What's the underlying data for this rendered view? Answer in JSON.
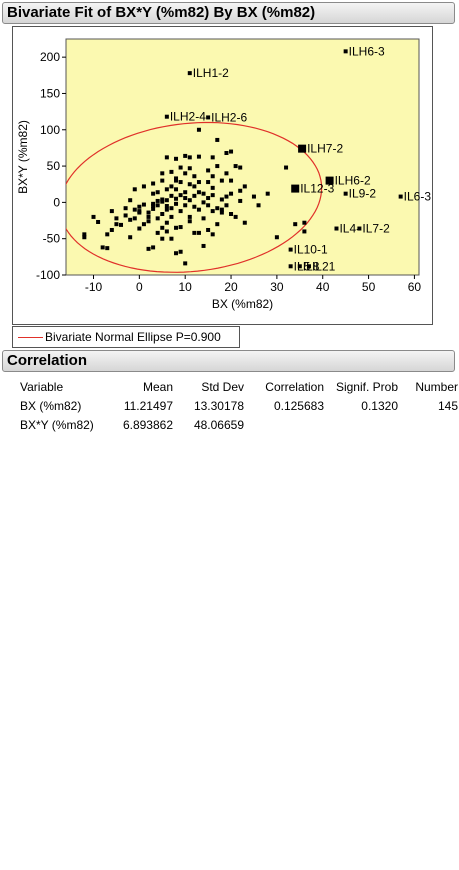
{
  "report": {
    "bivariate_title": "Bivariate Fit of BX*Y (%m82) By BX (%m82)",
    "legend_label": "Bivariate Normal Ellipse P=0.900",
    "correlation_title": "Correlation"
  },
  "colors": {
    "plot_bg": "#fbf9b0",
    "points": "#000000",
    "ellipse": "#e0312a"
  },
  "chart_data": {
    "type": "scatter",
    "xlabel": "BX (%m82)",
    "ylabel": "BX*Y (%m82)",
    "xlim": [
      -16,
      61
    ],
    "ylim": [
      -100,
      225
    ],
    "xticks": [
      -10,
      0,
      10,
      20,
      30,
      40,
      50,
      60
    ],
    "yticks": [
      -100,
      -50,
      0,
      50,
      100,
      150,
      200
    ],
    "ellipse": {
      "probability": 0.9,
      "mean_x": 11.21497,
      "mean_y": 6.893862,
      "sd_x": 13.30178,
      "sd_y": 48.06659,
      "correlation": 0.125683
    },
    "labeled_points": [
      {
        "label": "ILH6-3",
        "x": 45,
        "y": 208,
        "marker": "small"
      },
      {
        "label": "ILH1-2",
        "x": 11,
        "y": 178,
        "marker": "small"
      },
      {
        "label": "ILH2-4",
        "x": 6,
        "y": 118,
        "marker": "small"
      },
      {
        "label": "ILH2-6",
        "x": 15,
        "y": 117,
        "marker": "small"
      },
      {
        "label": "ILH7-2",
        "x": 35.5,
        "y": 74,
        "marker": "large"
      },
      {
        "label": "ILH6-2",
        "x": 41.5,
        "y": 30,
        "marker": "large"
      },
      {
        "label": "IL12-3",
        "x": 34,
        "y": 19,
        "marker": "large"
      },
      {
        "label": "IL6-3",
        "x": 57,
        "y": 8,
        "marker": "small"
      },
      {
        "label": "IL9-2",
        "x": 45,
        "y": 12,
        "marker": "small"
      },
      {
        "label": "IL4-",
        "x": 43,
        "y": -36,
        "marker": "small"
      },
      {
        "label": "IL7-2",
        "x": 48,
        "y": -36,
        "marker": "small"
      },
      {
        "label": "IL10-1",
        "x": 33,
        "y": -65,
        "marker": "small"
      },
      {
        "label": "IL5",
        "x": 33,
        "y": -88,
        "marker": "small"
      },
      {
        "label": "IL8",
        "x": 35,
        "y": -88,
        "marker": "small"
      },
      {
        "label": "IL21",
        "x": 37,
        "y": -88,
        "marker": "small"
      }
    ],
    "points": [
      [
        -12,
        -48
      ],
      [
        -10,
        -20
      ],
      [
        -9,
        -27
      ],
      [
        -8,
        -62
      ],
      [
        -7,
        -63
      ],
      [
        -7,
        -44
      ],
      [
        -6,
        -12
      ],
      [
        -6,
        -38
      ],
      [
        -5,
        -30
      ],
      [
        -5,
        -22
      ],
      [
        -4,
        -31
      ],
      [
        -3,
        -18
      ],
      [
        -3,
        -8
      ],
      [
        -2,
        3
      ],
      [
        -2,
        -24
      ],
      [
        -2,
        -48
      ],
      [
        -1,
        -22
      ],
      [
        -1,
        -10
      ],
      [
        0,
        -6
      ],
      [
        0,
        -12
      ],
      [
        0,
        -36
      ],
      [
        1,
        -3
      ],
      [
        1,
        -30
      ],
      [
        1,
        22
      ],
      [
        2,
        -14
      ],
      [
        2,
        -26
      ],
      [
        2,
        -64
      ],
      [
        3,
        -5
      ],
      [
        3,
        -9
      ],
      [
        3,
        -2
      ],
      [
        3,
        12
      ],
      [
        3,
        26
      ],
      [
        4,
        -4
      ],
      [
        4,
        2
      ],
      [
        4,
        14
      ],
      [
        4,
        -22
      ],
      [
        5,
        1
      ],
      [
        5,
        4
      ],
      [
        5,
        -16
      ],
      [
        5,
        30
      ],
      [
        5,
        40
      ],
      [
        5,
        -35
      ],
      [
        5,
        -50
      ],
      [
        6,
        3
      ],
      [
        6,
        -10
      ],
      [
        6,
        18
      ],
      [
        6,
        62
      ],
      [
        6,
        -28
      ],
      [
        6,
        -5
      ],
      [
        7,
        -8
      ],
      [
        7,
        9
      ],
      [
        7,
        22
      ],
      [
        7,
        42
      ],
      [
        7,
        -20
      ],
      [
        7,
        -50
      ],
      [
        8,
        -70
      ],
      [
        8,
        -35
      ],
      [
        8,
        5
      ],
      [
        8,
        18
      ],
      [
        8,
        33
      ],
      [
        8,
        60
      ],
      [
        8,
        -2
      ],
      [
        9,
        -12
      ],
      [
        9,
        10
      ],
      [
        9,
        28
      ],
      [
        9,
        48
      ],
      [
        9,
        -34
      ],
      [
        10,
        -4
      ],
      [
        10,
        6
      ],
      [
        10,
        14
      ],
      [
        10,
        40
      ],
      [
        10,
        64
      ],
      [
        11,
        -20
      ],
      [
        11,
        3
      ],
      [
        11,
        25
      ],
      [
        11,
        47
      ],
      [
        11,
        62
      ],
      [
        12,
        -6
      ],
      [
        12,
        9
      ],
      [
        12,
        22
      ],
      [
        12,
        36
      ],
      [
        13,
        -10
      ],
      [
        13,
        14
      ],
      [
        13,
        63
      ],
      [
        13,
        -42
      ],
      [
        13,
        100
      ],
      [
        14,
        -22
      ],
      [
        14,
        0
      ],
      [
        14,
        12
      ],
      [
        14,
        -60
      ],
      [
        15,
        6
      ],
      [
        15,
        28
      ],
      [
        15,
        44
      ],
      [
        15,
        -4
      ],
      [
        16,
        -12
      ],
      [
        16,
        10
      ],
      [
        16,
        20
      ],
      [
        16,
        62
      ],
      [
        17,
        -8
      ],
      [
        17,
        -30
      ],
      [
        17,
        50
      ],
      [
        17,
        86
      ],
      [
        18,
        -14
      ],
      [
        18,
        4
      ],
      [
        18,
        30
      ],
      [
        19,
        -4
      ],
      [
        19,
        8
      ],
      [
        19,
        40
      ],
      [
        19,
        68
      ],
      [
        20,
        -16
      ],
      [
        20,
        12
      ],
      [
        20,
        30
      ],
      [
        20,
        70
      ],
      [
        21,
        -20
      ],
      [
        22,
        2
      ],
      [
        22,
        16
      ],
      [
        22,
        48
      ],
      [
        23,
        -28
      ],
      [
        23,
        22
      ],
      [
        25,
        8
      ],
      [
        26,
        -4
      ],
      [
        28,
        12
      ],
      [
        30,
        -48
      ],
      [
        32,
        48
      ],
      [
        -1,
        18
      ],
      [
        -12,
        -44
      ],
      [
        0,
        -14
      ],
      [
        2,
        -20
      ],
      [
        4,
        -42
      ],
      [
        10,
        -84
      ],
      [
        11,
        -26
      ],
      [
        15,
        -38
      ],
      [
        18,
        -10
      ],
      [
        3,
        -62
      ],
      [
        12,
        -42
      ],
      [
        16,
        -44
      ],
      [
        21,
        50
      ],
      [
        9,
        -68
      ],
      [
        13,
        28
      ],
      [
        16,
        36
      ],
      [
        6,
        -40
      ],
      [
        8,
        30
      ],
      [
        36,
        -40
      ],
      [
        34,
        -30
      ],
      [
        36,
        -28
      ]
    ]
  },
  "correlation": {
    "columns": [
      "Variable",
      "Mean",
      "Std Dev",
      "Correlation",
      "Signif. Prob",
      "Number"
    ],
    "rows": [
      {
        "variable": "BX (%m82)",
        "mean": "11.21497",
        "std_dev": "13.30178",
        "correlation": "0.125683",
        "signif_prob": "0.1320",
        "number": "145"
      },
      {
        "variable": "BX*Y (%m82)",
        "mean": "6.893862",
        "std_dev": "48.06659",
        "correlation": "",
        "signif_prob": "",
        "number": ""
      }
    ]
  }
}
